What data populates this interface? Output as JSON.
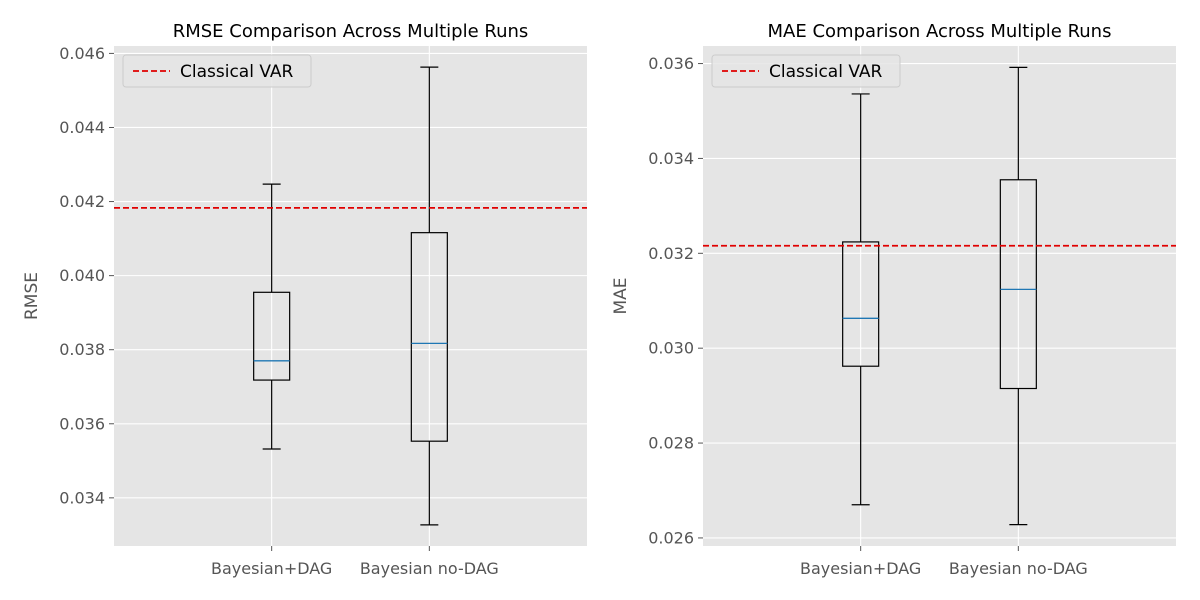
{
  "chart_data": [
    {
      "type": "box",
      "title": "RMSE Comparison Across Multiple Runs",
      "xlabel": "",
      "ylabel": "RMSE",
      "categories": [
        "Bayesian+DAG",
        "Bayesian no-DAG"
      ],
      "boxes": [
        {
          "whisker_low": 0.03532,
          "q1": 0.03718,
          "median": 0.0377,
          "q3": 0.03955,
          "whisker_high": 0.04247
        },
        {
          "whisker_low": 0.03327,
          "q1": 0.03553,
          "median": 0.03817,
          "q3": 0.04116,
          "whisker_high": 0.04563
        }
      ],
      "reference_line": {
        "label": "Classical VAR",
        "value": 0.04183,
        "color": "#e00000"
      },
      "ylim": [
        0.0327,
        0.0462
      ],
      "yticks": [
        0.034,
        0.036,
        0.038,
        0.04,
        0.042,
        0.044,
        0.046
      ],
      "ytick_labels": [
        "0.034",
        "0.036",
        "0.038",
        "0.040",
        "0.042",
        "0.044",
        "0.046"
      ],
      "grid": true,
      "legend_position": "upper-left"
    },
    {
      "type": "box",
      "title": "MAE Comparison Across Multiple Runs",
      "xlabel": "",
      "ylabel": "MAE",
      "categories": [
        "Bayesian+DAG",
        "Bayesian no-DAG"
      ],
      "boxes": [
        {
          "whisker_low": 0.0267,
          "q1": 0.02962,
          "median": 0.03063,
          "q3": 0.03224,
          "whisker_high": 0.03536
        },
        {
          "whisker_low": 0.02628,
          "q1": 0.02915,
          "median": 0.03124,
          "q3": 0.03355,
          "whisker_high": 0.03592
        }
      ],
      "reference_line": {
        "label": "Classical VAR",
        "value": 0.03216,
        "color": "#e00000"
      },
      "ylim": [
        0.02583,
        0.03637
      ],
      "yticks": [
        0.026,
        0.028,
        0.03,
        0.032,
        0.034,
        0.036
      ],
      "ytick_labels": [
        "0.026",
        "0.028",
        "0.030",
        "0.032",
        "0.034",
        "0.036"
      ],
      "grid": true,
      "legend_position": "upper-left"
    }
  ],
  "colors": {
    "panel_background": "#e5e5e5",
    "grid": "#ffffff",
    "box_edge": "#000000",
    "median": "#1f77b4",
    "tick_text": "#555555"
  }
}
